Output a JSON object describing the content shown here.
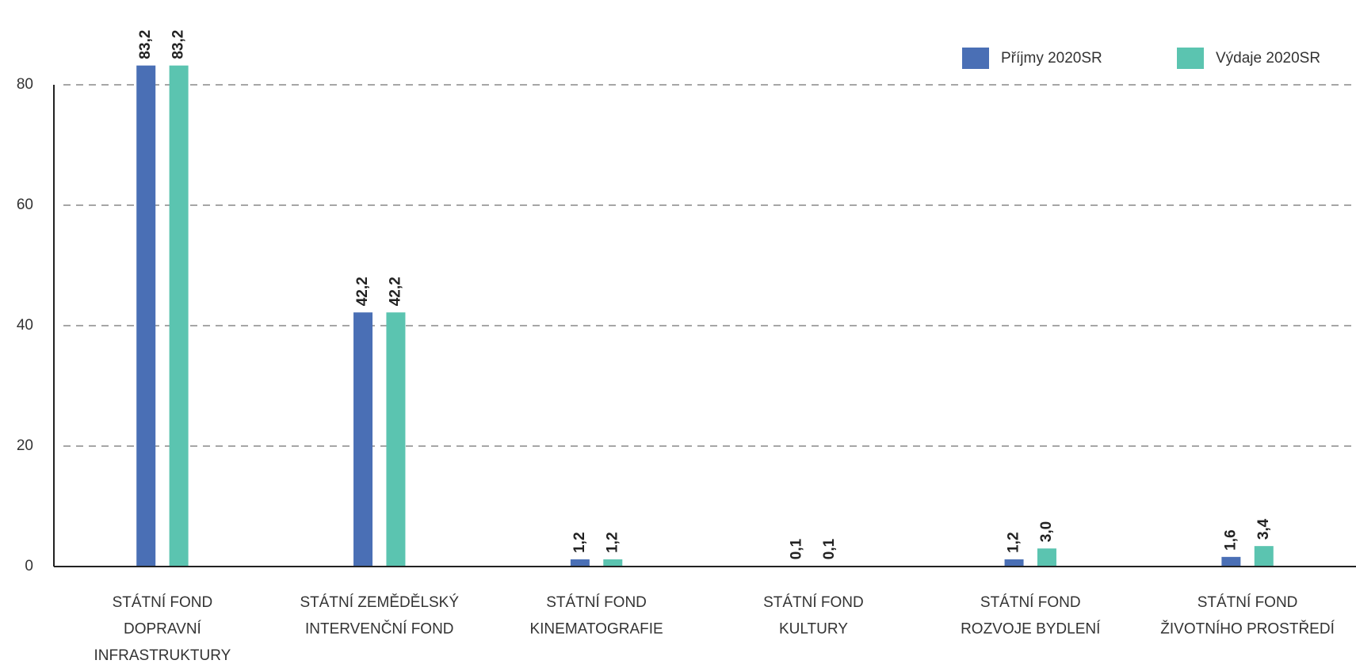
{
  "chart_data": {
    "type": "bar",
    "categories": [
      [
        "STÁTNÍ FOND",
        "DOPRAVNÍ",
        "INFRASTRUKTURY"
      ],
      [
        "STÁTNÍ ZEMĚDĚLSKÝ",
        "INTERVENČNÍ FOND"
      ],
      [
        "STÁTNÍ FOND",
        "KINEMATOGRAFIE"
      ],
      [
        "STÁTNÍ FOND",
        "KULTURY"
      ],
      [
        "STÁTNÍ FOND",
        "ROZVOJE BYDLENÍ"
      ],
      [
        "STÁTNÍ FOND",
        "ŽIVOTNÍHO PROSTŘEDÍ"
      ]
    ],
    "series": [
      {
        "name": "Příjmy 2020SR",
        "color": "#4a6fb5",
        "values": [
          83.2,
          42.2,
          1.2,
          0.1,
          1.2,
          1.6
        ],
        "value_labels": [
          "83,2",
          "42,2",
          "1,2",
          "0,1",
          "1,2",
          "1,6"
        ]
      },
      {
        "name": "Výdaje 2020SR",
        "color": "#5bc4b0",
        "values": [
          83.2,
          42.2,
          1.2,
          0.1,
          3.0,
          3.4
        ],
        "value_labels": [
          "83,2",
          "42,2",
          "1,2",
          "0,1",
          "3,0",
          "3,4"
        ]
      }
    ],
    "ylim": [
      0,
      90
    ],
    "yticks": [
      0,
      20,
      40,
      60,
      80
    ],
    "grid": true,
    "legend": "top-right"
  }
}
